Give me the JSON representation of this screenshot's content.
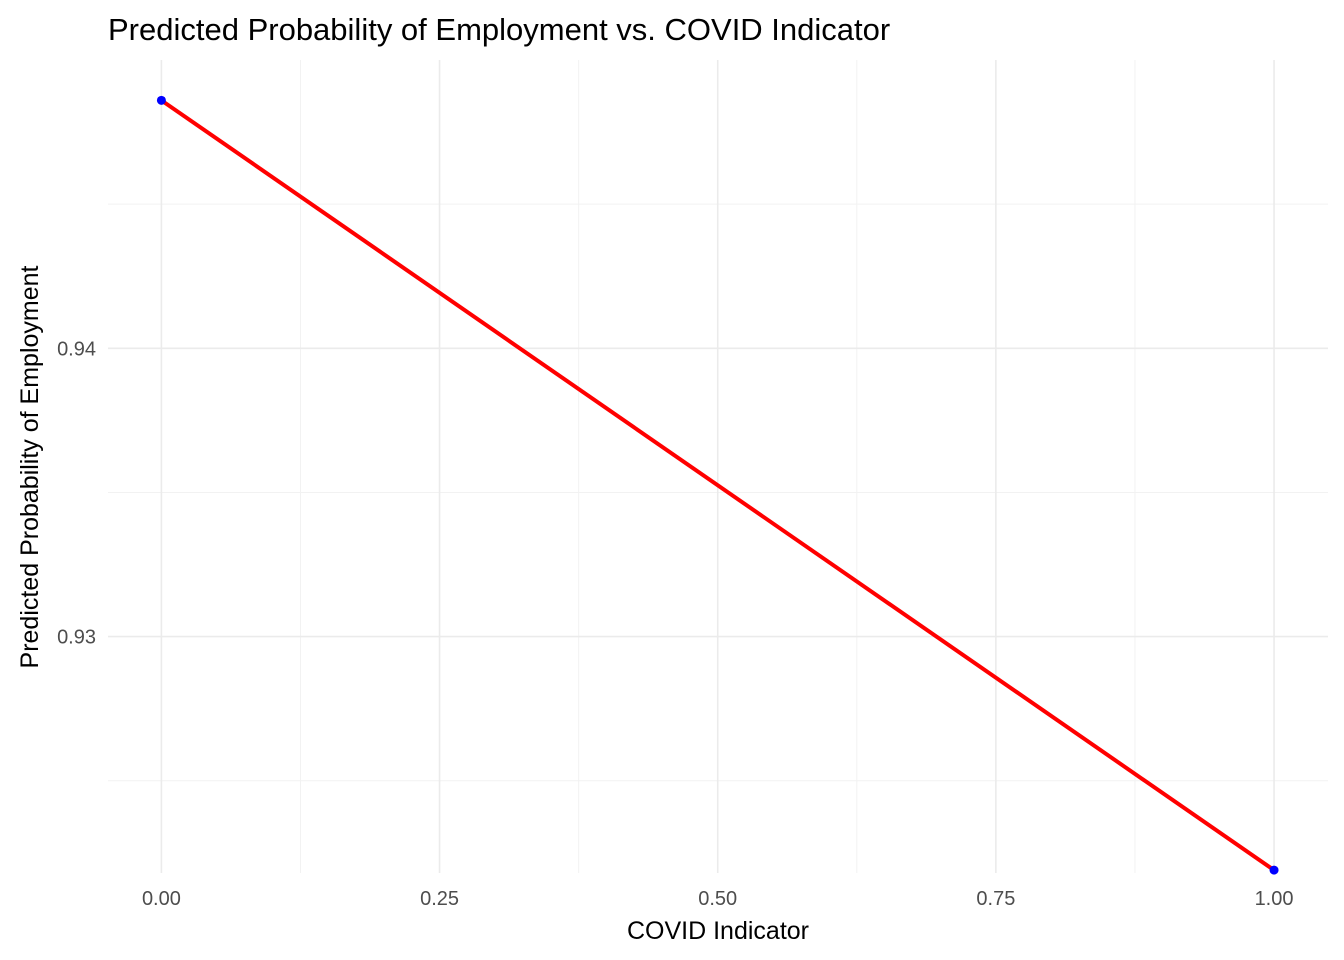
{
  "chart_data": {
    "type": "line",
    "title": "Predicted Probability of Employment vs. COVID Indicator",
    "xlabel": "COVID Indicator",
    "ylabel": "Predicted Probability of Employment",
    "xlim": [
      -0.048,
      1.0485
    ],
    "ylim": [
      0.9218,
      0.95
    ],
    "x_ticks": [
      0,
      0.25,
      0.5,
      0.75,
      1.0
    ],
    "x_tick_labels": [
      "0.00",
      "0.25",
      "0.50",
      "0.75",
      "1.00"
    ],
    "y_ticks": [
      0.93,
      0.94
    ],
    "y_tick_labels": [
      "0.93",
      "0.94"
    ],
    "grid": true,
    "series": [
      {
        "x": [
          0,
          1
        ],
        "y": [
          0.9486,
          0.9219
        ],
        "line_color": "#ff0000",
        "point_color": "#0000ff"
      }
    ]
  }
}
